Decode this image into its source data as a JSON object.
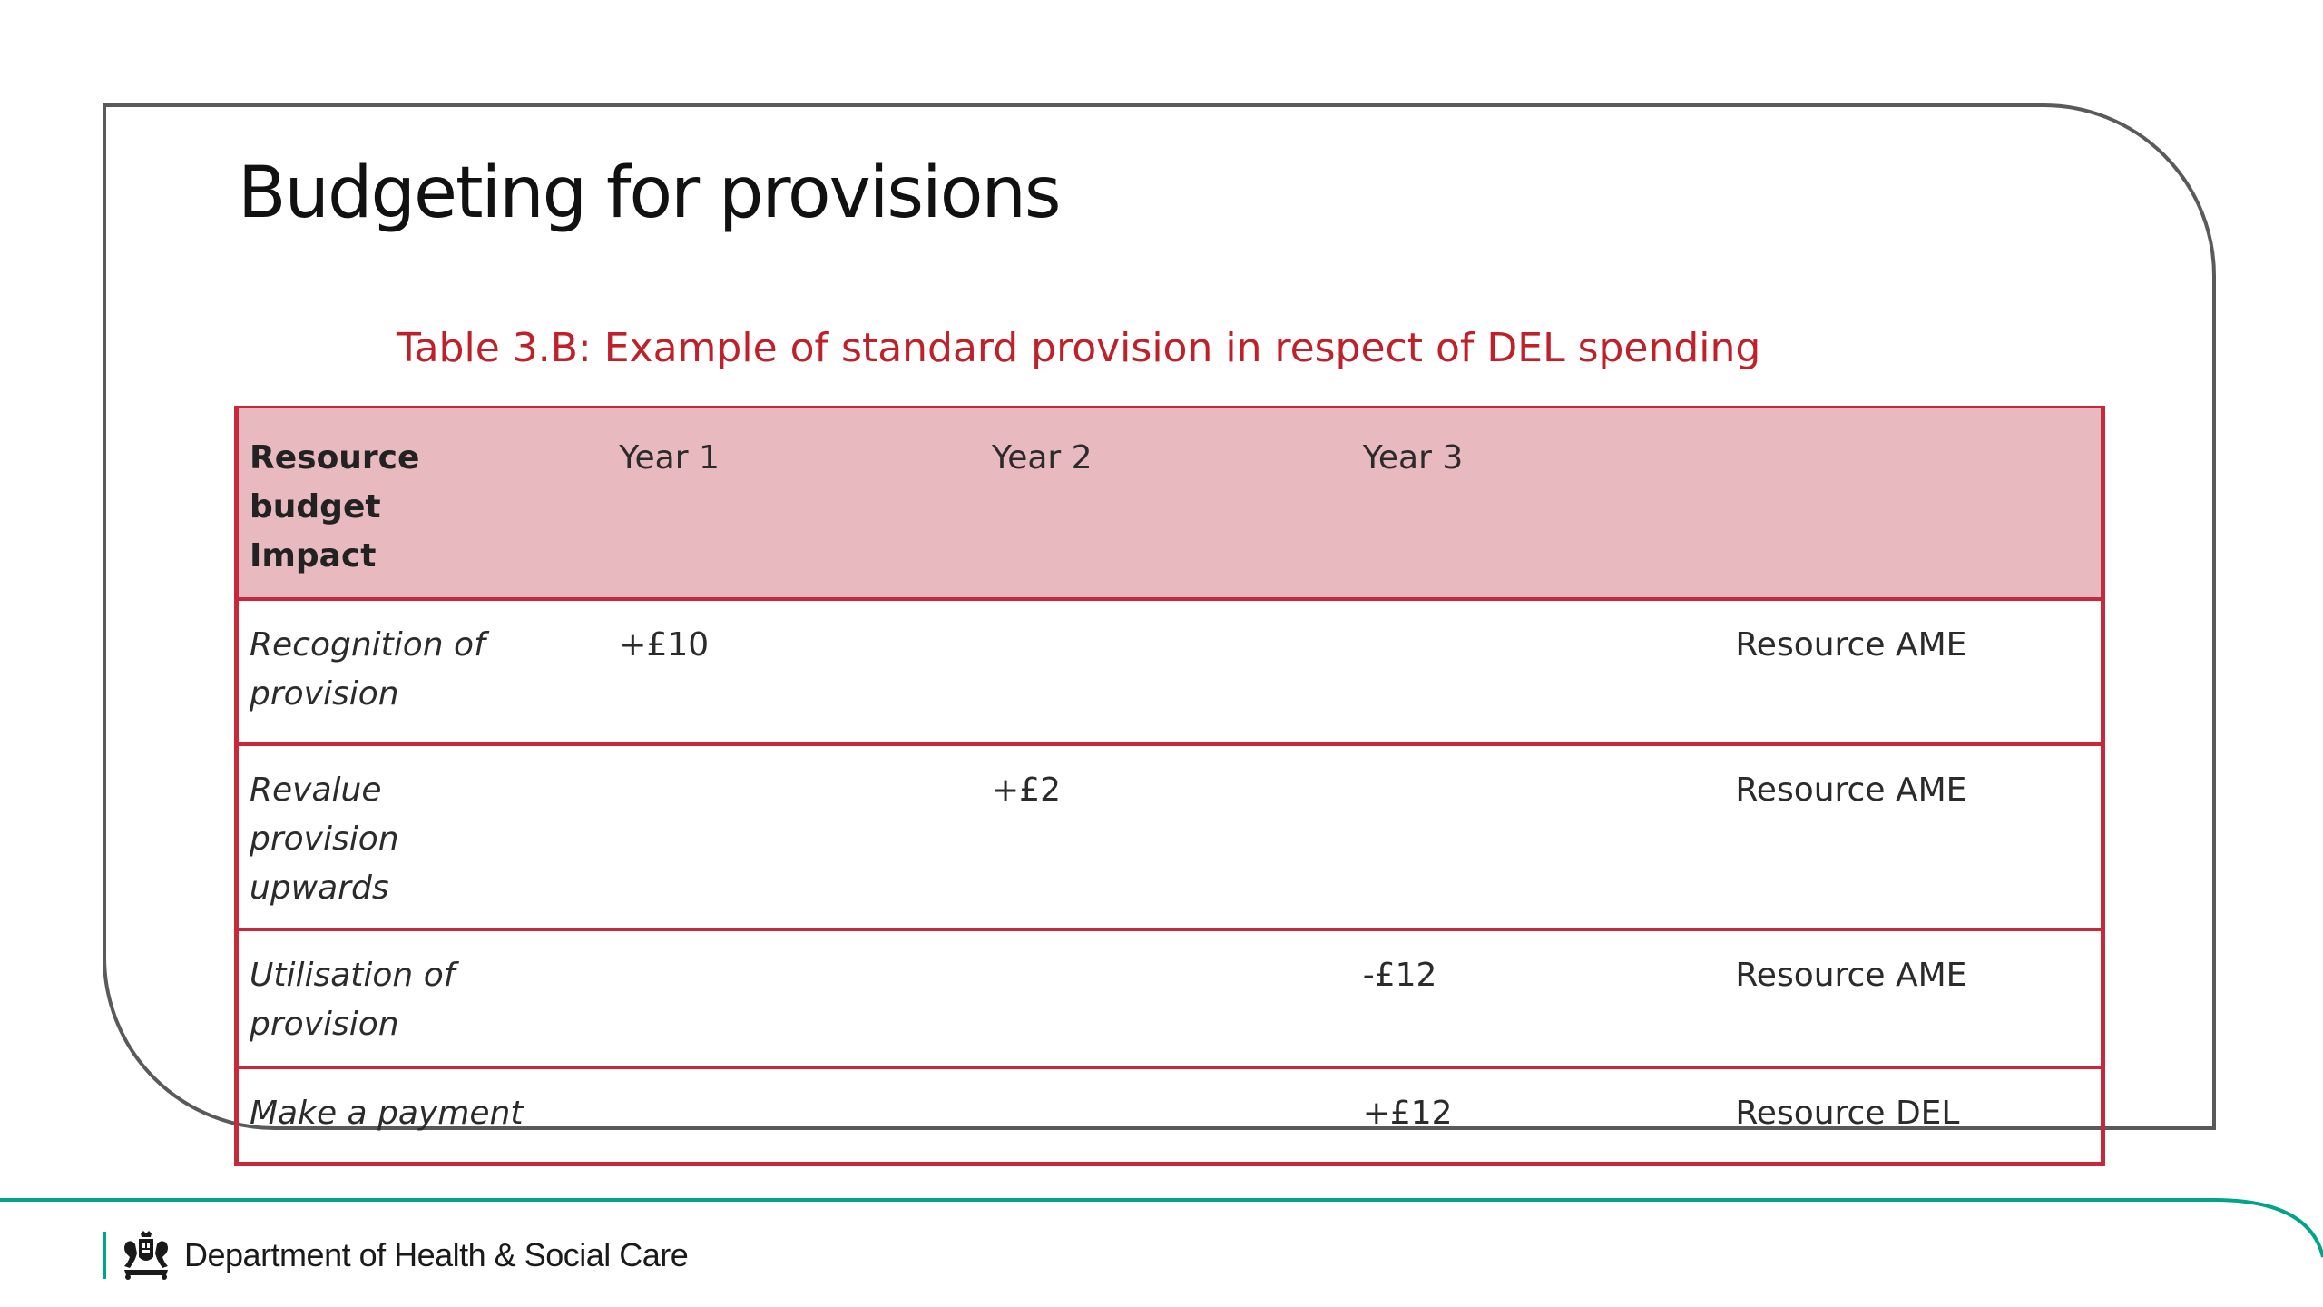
{
  "slide": {
    "title": "Budgeting for provisions",
    "caption": "Table 3.B: Example of standard provision in respect of DEL spending"
  },
  "table": {
    "header": {
      "col1": "Resource budget Impact",
      "col2": "Year 1",
      "col3": "Year 2",
      "col4": "Year 3",
      "col5": ""
    },
    "rows": [
      {
        "label": "Recognition of provision",
        "year1": "+£10",
        "year2": "",
        "year3": "",
        "type": "Resource AME"
      },
      {
        "label": "Revalue provision upwards",
        "year1": "",
        "year2": "+£2",
        "year3": "",
        "type": "Resource AME"
      },
      {
        "label": "Utilisation of provision",
        "year1": "",
        "year2": "",
        "year3": "-£12",
        "type": "Resource AME"
      },
      {
        "label": "Make a payment",
        "year1": "",
        "year2": "",
        "year3": "+£12",
        "type": "Resource DEL"
      }
    ]
  },
  "footer": {
    "department": "Department of Health & Social Care",
    "logo_icon": "royal-crest-icon"
  },
  "colors": {
    "caption_red": "#c0202a",
    "table_border_red": "#c8283a",
    "header_pink": "#e8b9bf",
    "footer_teal": "#00a48a"
  }
}
